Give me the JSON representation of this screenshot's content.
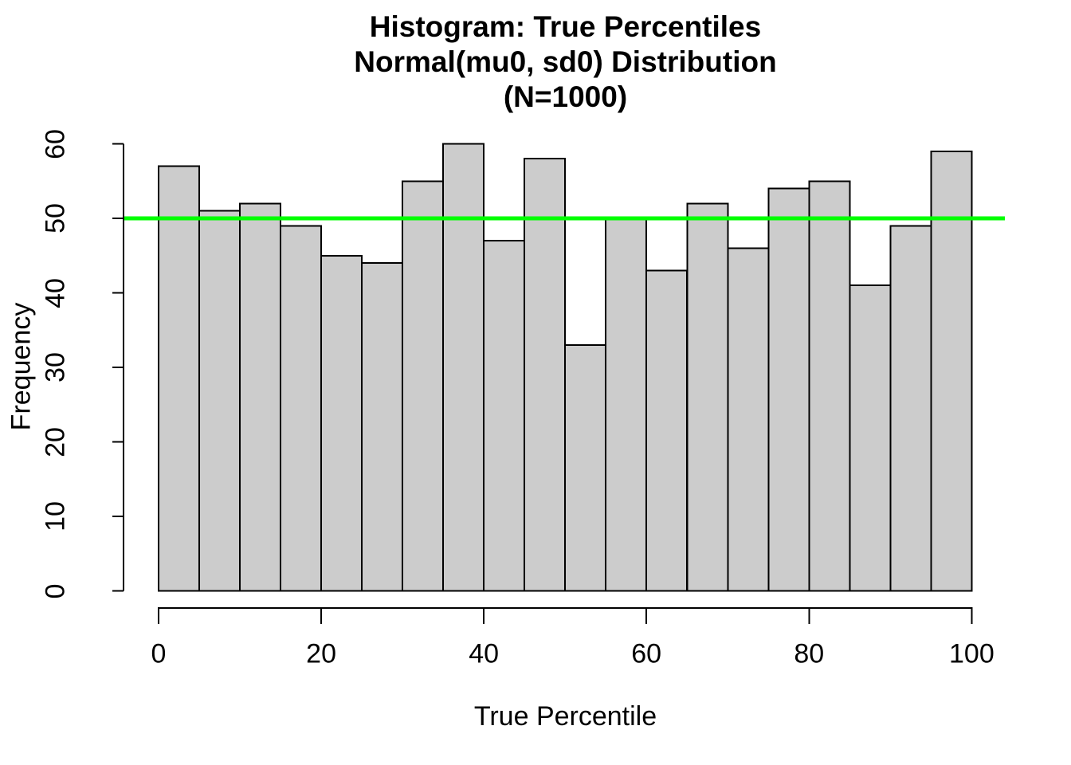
{
  "chart_data": {
    "type": "bar",
    "kind": "histogram",
    "title_lines": [
      "Histogram: True Percentiles",
      "Normal(mu0, sd0) Distribution",
      "(N=1000)"
    ],
    "xlabel": "True Percentile",
    "ylabel": "Frequency",
    "sample_size": 1000,
    "bins": {
      "start": 0,
      "width": 5
    },
    "categories": [
      "0-5",
      "5-10",
      "10-15",
      "15-20",
      "20-25",
      "25-30",
      "30-35",
      "35-40",
      "40-45",
      "45-50",
      "50-55",
      "55-60",
      "60-65",
      "65-70",
      "70-75",
      "75-80",
      "80-85",
      "85-90",
      "90-95",
      "95-100"
    ],
    "values": [
      57,
      51,
      52,
      49,
      45,
      44,
      55,
      60,
      47,
      58,
      33,
      50,
      43,
      52,
      46,
      54,
      55,
      41,
      49,
      59
    ],
    "x_ticks": [
      0,
      20,
      40,
      60,
      80,
      100
    ],
    "y_ticks": [
      0,
      10,
      20,
      30,
      40,
      50,
      60
    ],
    "xlim": [
      0,
      100
    ],
    "ylim": [
      0,
      60
    ],
    "grid": false,
    "legend": null,
    "reference_line": {
      "value": 50,
      "color": "#00FF00"
    },
    "colors": {
      "bar_fill": "#CCCCCC",
      "bar_border": "#000000",
      "axis": "#000000",
      "text": "#000000",
      "background": "#FFFFFF"
    }
  }
}
